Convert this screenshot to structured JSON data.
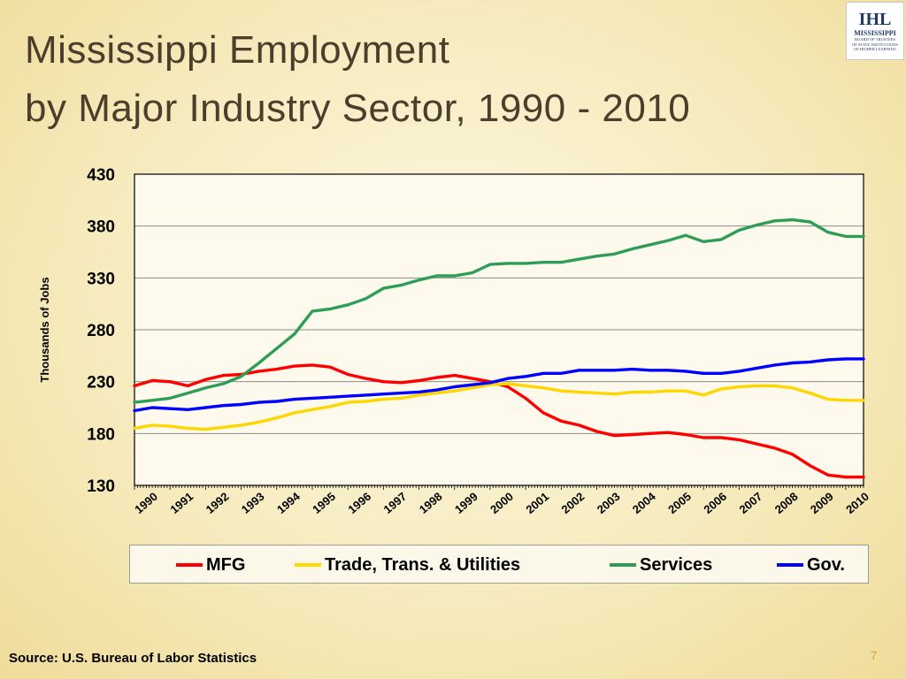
{
  "slide": {
    "title_line1": "Mississippi Employment",
    "title_line2": "by Major Industry Sector, 1990 - 2010",
    "source": "Source: U.S. Bureau of Labor Statistics",
    "page_number": "7"
  },
  "logo": {
    "mark": "IHL",
    "name_line1": "MISSISSIPPI",
    "sub_line1": "BOARD OF TRUSTEES",
    "sub_line2": "OF STATE INSTITUTIONS",
    "sub_line3": "OF HIGHER LEARNING"
  },
  "chart_data": {
    "type": "line",
    "title": "",
    "xlabel": "",
    "ylabel": "Thousands of Jobs",
    "ylim": [
      130,
      430
    ],
    "xlim": [
      1990,
      2010.5
    ],
    "yticks": [
      130,
      180,
      230,
      280,
      330,
      380,
      430
    ],
    "xtick_labels": [
      "1990",
      "1991",
      "1992",
      "1993",
      "1994",
      "1995",
      "1996",
      "1997",
      "1998",
      "1999",
      "2000",
      "2001",
      "2002",
      "2003",
      "2004",
      "2005",
      "2006",
      "2007",
      "2008",
      "2009",
      "2010"
    ],
    "grid": true,
    "legend_position": "bottom",
    "series": [
      {
        "name": "MFG",
        "color": "#ff0000",
        "x": [
          1990,
          1990.5,
          1991,
          1991.5,
          1992,
          1992.5,
          1993,
          1993.5,
          1994,
          1994.5,
          1995,
          1995.5,
          1996,
          1996.5,
          1997,
          1997.5,
          1998,
          1998.5,
          1999,
          1999.5,
          2000,
          2000.5,
          2001,
          2001.5,
          2002,
          2002.5,
          2003,
          2003.5,
          2004,
          2004.5,
          2005,
          2005.5,
          2006,
          2006.5,
          2007,
          2007.5,
          2008,
          2008.5,
          2009,
          2009.5,
          2010,
          2010.5
        ],
        "values": [
          226,
          231,
          230,
          226,
          232,
          236,
          237,
          240,
          242,
          245,
          246,
          244,
          237,
          233,
          230,
          229,
          231,
          234,
          236,
          233,
          230,
          225,
          214,
          200,
          192,
          188,
          182,
          178,
          179,
          180,
          181,
          179,
          176,
          176,
          174,
          170,
          166,
          160,
          149,
          140,
          138,
          138
        ]
      },
      {
        "name": "Trade, Trans. & Utilities",
        "color": "#ffd700",
        "x": [
          1990,
          1990.5,
          1991,
          1991.5,
          1992,
          1992.5,
          1993,
          1993.5,
          1994,
          1994.5,
          1995,
          1995.5,
          1996,
          1996.5,
          1997,
          1997.5,
          1998,
          1998.5,
          1999,
          1999.5,
          2000,
          2000.5,
          2001,
          2001.5,
          2002,
          2002.5,
          2003,
          2003.5,
          2004,
          2004.5,
          2005,
          2005.5,
          2006,
          2006.5,
          2007,
          2007.5,
          2008,
          2008.5,
          2009,
          2009.5,
          2010,
          2010.5
        ],
        "values": [
          185,
          188,
          187,
          185,
          184,
          186,
          188,
          191,
          195,
          200,
          203,
          206,
          210,
          211,
          213,
          214,
          217,
          219,
          221,
          224,
          227,
          228,
          226,
          224,
          221,
          220,
          219,
          218,
          220,
          220,
          221,
          221,
          217,
          223,
          225,
          226,
          226,
          224,
          219,
          213,
          212,
          212
        ]
      },
      {
        "name": "Services",
        "color": "#2e9e57",
        "x": [
          1990,
          1990.5,
          1991,
          1991.5,
          1992,
          1992.5,
          1993,
          1993.5,
          1994,
          1994.5,
          1995,
          1995.5,
          1996,
          1996.5,
          1997,
          1997.5,
          1998,
          1998.5,
          1999,
          1999.5,
          2000,
          2000.5,
          2001,
          2001.5,
          2002,
          2002.5,
          2003,
          2003.5,
          2004,
          2004.5,
          2005,
          2005.5,
          2006,
          2006.5,
          2007,
          2007.5,
          2008,
          2008.5,
          2009,
          2009.5,
          2010,
          2010.5
        ],
        "values": [
          210,
          212,
          214,
          219,
          224,
          228,
          235,
          248,
          262,
          276,
          298,
          300,
          304,
          310,
          320,
          323,
          328,
          332,
          332,
          335,
          343,
          344,
          344,
          345,
          345,
          348,
          351,
          353,
          358,
          362,
          366,
          371,
          365,
          367,
          376,
          381,
          385,
          386,
          384,
          374,
          370,
          370
        ]
      },
      {
        "name": "Gov.",
        "color": "#0000ff",
        "x": [
          1990,
          1990.5,
          1991,
          1991.5,
          1992,
          1992.5,
          1993,
          1993.5,
          1994,
          1994.5,
          1995,
          1995.5,
          1996,
          1996.5,
          1997,
          1997.5,
          1998,
          1998.5,
          1999,
          1999.5,
          2000,
          2000.5,
          2001,
          2001.5,
          2002,
          2002.5,
          2003,
          2003.5,
          2004,
          2004.5,
          2005,
          2005.5,
          2006,
          2006.5,
          2007,
          2007.5,
          2008,
          2008.5,
          2009,
          2009.5,
          2010,
          2010.5
        ],
        "values": [
          202,
          205,
          204,
          203,
          205,
          207,
          208,
          210,
          211,
          213,
          214,
          215,
          216,
          217,
          218,
          219,
          220,
          222,
          225,
          227,
          229,
          233,
          235,
          238,
          238,
          241,
          241,
          241,
          242,
          241,
          241,
          240,
          238,
          238,
          240,
          243,
          246,
          248,
          249,
          251,
          252,
          252
        ]
      }
    ]
  }
}
